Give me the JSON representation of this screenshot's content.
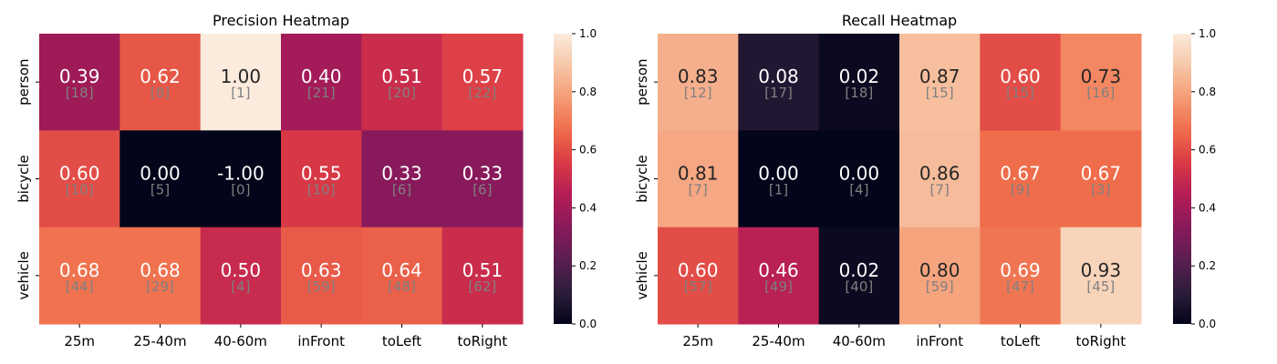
{
  "chart_data": [
    {
      "type": "heatmap",
      "title": "Precision Heatmap",
      "x_categories": [
        "25m",
        "25-40m",
        "40-60m",
        "inFront",
        "toLeft",
        "toRight"
      ],
      "y_categories": [
        "person",
        "bicycle",
        "vehicle"
      ],
      "values": [
        [
          0.39,
          0.62,
          1.0,
          0.4,
          0.51,
          0.57
        ],
        [
          0.6,
          0.0,
          -1.0,
          0.55,
          0.33,
          0.33
        ],
        [
          0.68,
          0.68,
          0.5,
          0.63,
          0.64,
          0.51
        ]
      ],
      "value_labels": [
        [
          "0.39",
          "0.62",
          "1.00",
          "0.40",
          "0.51",
          "0.57"
        ],
        [
          "0.60",
          "0.00",
          "-1.00",
          "0.55",
          "0.33",
          "0.33"
        ],
        [
          "0.68",
          "0.68",
          "0.50",
          "0.63",
          "0.64",
          "0.51"
        ]
      ],
      "counts": [
        [
          18,
          8,
          1,
          21,
          20,
          22
        ],
        [
          10,
          5,
          0,
          10,
          6,
          6
        ],
        [
          44,
          29,
          4,
          59,
          48,
          62
        ]
      ],
      "colorbar": {
        "range": [
          0.0,
          1.0
        ],
        "ticks": [
          "0.0",
          "0.2",
          "0.4",
          "0.6",
          "0.8",
          "1.0"
        ]
      },
      "colormap": "rocket"
    },
    {
      "type": "heatmap",
      "title": "Recall Heatmap",
      "x_categories": [
        "25m",
        "25-40m",
        "40-60m",
        "inFront",
        "toLeft",
        "toRight"
      ],
      "y_categories": [
        "person",
        "bicycle",
        "vehicle"
      ],
      "values": [
        [
          0.83,
          0.08,
          0.02,
          0.87,
          0.6,
          0.73
        ],
        [
          0.81,
          0.0,
          0.0,
          0.86,
          0.67,
          0.67
        ],
        [
          0.6,
          0.46,
          0.02,
          0.8,
          0.69,
          0.93
        ]
      ],
      "value_labels": [
        [
          "0.83",
          "0.08",
          "0.02",
          "0.87",
          "0.60",
          "0.73"
        ],
        [
          "0.81",
          "0.00",
          "0.00",
          "0.86",
          "0.67",
          "0.67"
        ],
        [
          "0.60",
          "0.46",
          "0.02",
          "0.80",
          "0.69",
          "0.93"
        ]
      ],
      "counts": [
        [
          12,
          17,
          18,
          15,
          15,
          16
        ],
        [
          7,
          1,
          4,
          7,
          9,
          3
        ],
        [
          57,
          49,
          40,
          59,
          47,
          45
        ]
      ],
      "colorbar": {
        "range": [
          0.0,
          1.0
        ],
        "ticks": [
          "0.0",
          "0.2",
          "0.4",
          "0.6",
          "0.8",
          "1.0"
        ]
      },
      "colormap": "rocket"
    }
  ],
  "colors": {
    "rocket_stops": [
      "#03051a",
      "#2e1e3b",
      "#5a1e51",
      "#891a5b",
      "#b41c56",
      "#da3945",
      "#ef6c4a",
      "#f59b74",
      "#f7c6a7",
      "#faebdd"
    ],
    "light_text": "#ffffff",
    "dark_text": "#262626",
    "count_text": "#808080",
    "axis_text": "#000000"
  }
}
